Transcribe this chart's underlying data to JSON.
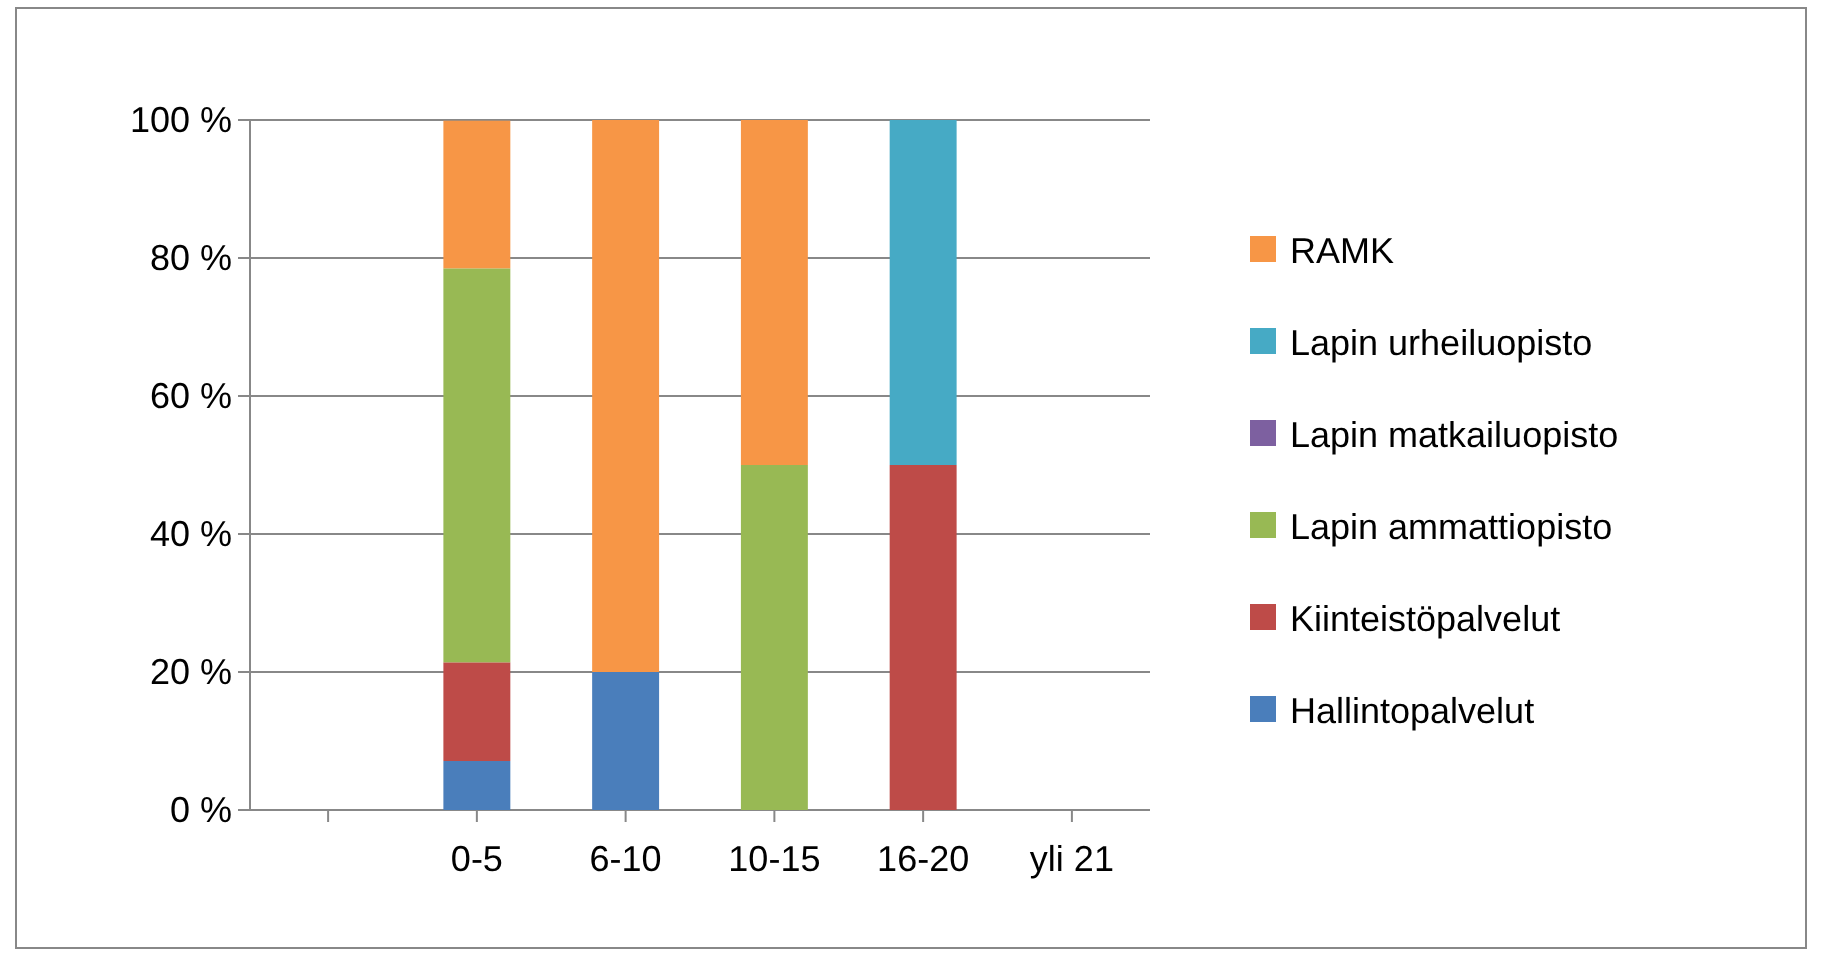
{
  "chart_data": {
    "type": "bar",
    "stacked": true,
    "categories": [
      null,
      "0-5",
      "6-10",
      "10-15",
      "16-20",
      "yli 21"
    ],
    "series": [
      {
        "name": "Hallintopalvelut",
        "color": "#4a7ebb",
        "values": [
          null,
          7.1,
          20,
          0,
          0,
          0
        ]
      },
      {
        "name": "Kiinteistöpalvelut",
        "color": "#be4b48",
        "values": [
          null,
          14.3,
          0,
          0,
          50,
          0
        ]
      },
      {
        "name": "Lapin ammattiopisto",
        "color": "#98b954",
        "values": [
          null,
          57.1,
          0,
          50,
          0,
          0
        ]
      },
      {
        "name": "Lapin matkailuopisto",
        "color": "#7d60a0",
        "values": [
          null,
          0,
          0,
          0,
          0,
          0
        ]
      },
      {
        "name": "Lapin urheiluopisto",
        "color": "#46aac5",
        "values": [
          null,
          0,
          0,
          0,
          50,
          0
        ]
      },
      {
        "name": "RAMK",
        "color": "#f79646",
        "values": [
          null,
          21.4,
          80,
          50,
          0,
          0
        ]
      }
    ],
    "ylim": [
      0,
      100
    ],
    "yticks": [
      {
        "value": 0,
        "label": "0 %"
      },
      {
        "value": 20,
        "label": "20 %"
      },
      {
        "value": 40,
        "label": "40 %"
      },
      {
        "value": 60,
        "label": "60 %"
      },
      {
        "value": 80,
        "label": "80 %"
      },
      {
        "value": 100,
        "label": "100 %"
      }
    ],
    "grid": "y",
    "legend": "right"
  }
}
